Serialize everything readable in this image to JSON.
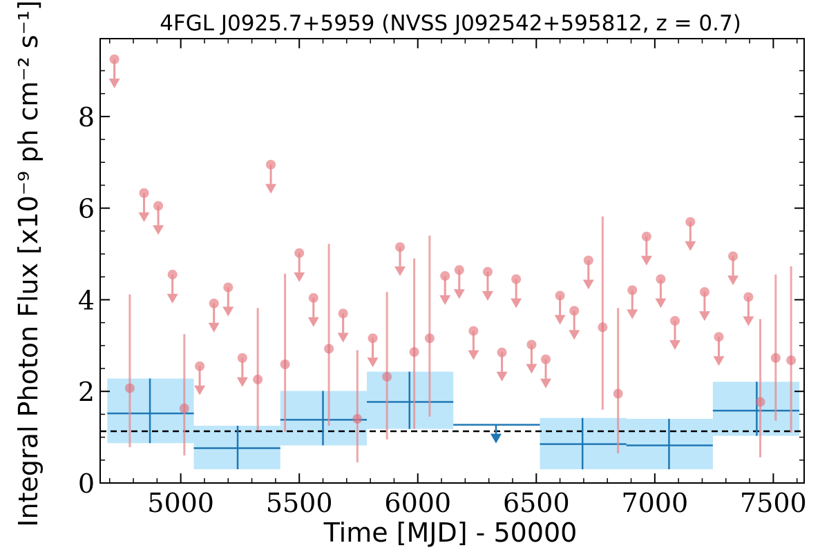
{
  "chart_data": {
    "type": "scatter",
    "title": "4FGL J0925.7+5959 (NVSS J092542+595812, z = 0.7)",
    "xlabel": "Time [MJD] - 50000",
    "ylabel": "Integral Photon Flux [x10⁻⁹ ph cm⁻² s⁻¹]",
    "xlim": [
      4660,
      7630
    ],
    "ylim": [
      0,
      9.7
    ],
    "xticks": [
      5000,
      5500,
      6000,
      6500,
      7000,
      7500
    ],
    "yticks": [
      0,
      2,
      4,
      6,
      8
    ],
    "grid": false,
    "average_flux": 1.13,
    "colors": {
      "short_bins": "#e8888e",
      "long_bins_line": "#1f77b4",
      "long_bins_band": "#bde6fa",
      "average_line": "#000000"
    },
    "short_bin_detections": [
      {
        "x": 4785,
        "y": 2.07,
        "ylo": 0.78,
        "yhi": 4.12
      },
      {
        "x": 5015,
        "y": 1.63,
        "ylo": 0.6,
        "yhi": 3.25
      },
      {
        "x": 5325,
        "y": 2.26,
        "ylo": 1.15,
        "yhi": 3.82
      },
      {
        "x": 5440,
        "y": 2.59,
        "ylo": 1.12,
        "yhi": 4.57
      },
      {
        "x": 5625,
        "y": 2.93,
        "ylo": 1.25,
        "yhi": 5.22
      },
      {
        "x": 5745,
        "y": 1.4,
        "ylo": 0.45,
        "yhi": 2.9
      },
      {
        "x": 5870,
        "y": 2.32,
        "ylo": 0.95,
        "yhi": 4.17
      },
      {
        "x": 5985,
        "y": 2.86,
        "ylo": 1.18,
        "yhi": 4.9
      },
      {
        "x": 6050,
        "y": 3.16,
        "ylo": 1.45,
        "yhi": 5.4
      },
      {
        "x": 6780,
        "y": 3.4,
        "ylo": 1.6,
        "yhi": 5.82
      },
      {
        "x": 6845,
        "y": 1.95,
        "ylo": 0.65,
        "yhi": 3.82
      },
      {
        "x": 7445,
        "y": 1.77,
        "ylo": 0.56,
        "yhi": 3.58
      },
      {
        "x": 7510,
        "y": 2.73,
        "ylo": 1.36,
        "yhi": 4.55
      },
      {
        "x": 7575,
        "y": 2.68,
        "ylo": 1.1,
        "yhi": 4.73
      }
    ],
    "short_bin_upper_limits": [
      {
        "x": 4720,
        "y": 9.25
      },
      {
        "x": 4845,
        "y": 6.33
      },
      {
        "x": 4905,
        "y": 6.05
      },
      {
        "x": 4965,
        "y": 4.55
      },
      {
        "x": 5080,
        "y": 2.55
      },
      {
        "x": 5140,
        "y": 3.92
      },
      {
        "x": 5200,
        "y": 4.27
      },
      {
        "x": 5260,
        "y": 2.73
      },
      {
        "x": 5380,
        "y": 6.95
      },
      {
        "x": 5500,
        "y": 5.02
      },
      {
        "x": 5560,
        "y": 4.04
      },
      {
        "x": 5685,
        "y": 3.7
      },
      {
        "x": 5810,
        "y": 3.16
      },
      {
        "x": 5925,
        "y": 5.15
      },
      {
        "x": 6115,
        "y": 4.52
      },
      {
        "x": 6175,
        "y": 4.65
      },
      {
        "x": 6235,
        "y": 3.32
      },
      {
        "x": 6295,
        "y": 4.61
      },
      {
        "x": 6355,
        "y": 2.85
      },
      {
        "x": 6415,
        "y": 4.45
      },
      {
        "x": 6480,
        "y": 3.02
      },
      {
        "x": 6540,
        "y": 2.7
      },
      {
        "x": 6600,
        "y": 4.09
      },
      {
        "x": 6660,
        "y": 3.76
      },
      {
        "x": 6720,
        "y": 4.86
      },
      {
        "x": 6905,
        "y": 4.21
      },
      {
        "x": 6965,
        "y": 5.38
      },
      {
        "x": 7025,
        "y": 4.45
      },
      {
        "x": 7085,
        "y": 3.54
      },
      {
        "x": 7150,
        "y": 5.7
      },
      {
        "x": 7210,
        "y": 4.17
      },
      {
        "x": 7270,
        "y": 3.19
      },
      {
        "x": 7330,
        "y": 4.95
      },
      {
        "x": 7395,
        "y": 4.06
      }
    ],
    "long_bins": [
      {
        "x0": 4690,
        "x1": 5055,
        "xc": 4870,
        "y": 1.52,
        "ylo": 0.87,
        "yhi": 2.28,
        "upper_limit": false
      },
      {
        "x0": 5055,
        "x1": 5420,
        "xc": 5240,
        "y": 0.76,
        "ylo": 0.3,
        "yhi": 1.25,
        "upper_limit": false
      },
      {
        "x0": 5420,
        "x1": 5785,
        "xc": 5600,
        "y": 1.38,
        "ylo": 0.82,
        "yhi": 2.01,
        "upper_limit": false
      },
      {
        "x0": 5785,
        "x1": 6150,
        "xc": 5965,
        "y": 1.77,
        "ylo": 1.18,
        "yhi": 2.43,
        "upper_limit": false
      },
      {
        "x0": 6150,
        "x1": 6515,
        "xc": 6330,
        "y": 1.27,
        "upper_limit": true
      },
      {
        "x0": 6515,
        "x1": 6880,
        "xc": 6695,
        "y": 0.85,
        "ylo": 0.3,
        "yhi": 1.42,
        "upper_limit": false
      },
      {
        "x0": 6880,
        "x1": 7245,
        "xc": 7060,
        "y": 0.82,
        "ylo": 0.3,
        "yhi": 1.4,
        "upper_limit": false
      },
      {
        "x0": 7245,
        "x1": 7610,
        "xc": 7430,
        "y": 1.58,
        "ylo": 1.03,
        "yhi": 2.21,
        "upper_limit": false
      }
    ]
  }
}
